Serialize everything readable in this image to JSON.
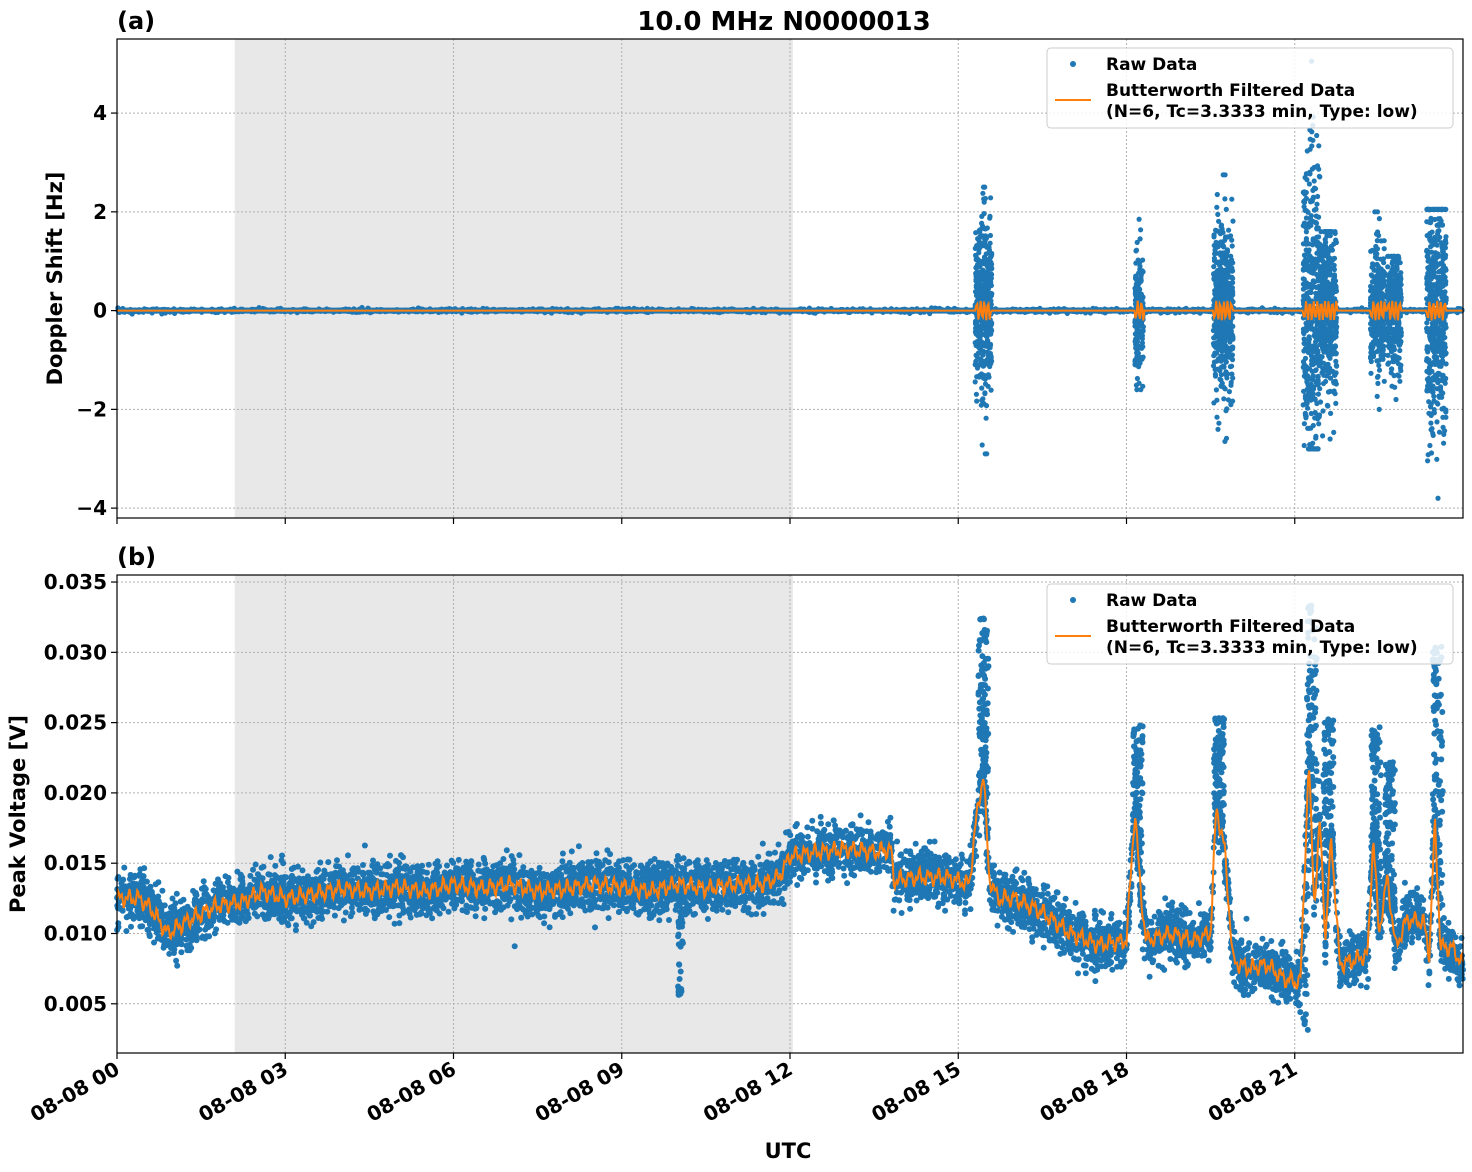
{
  "figure": {
    "title": "10.0 MHz N0000013",
    "xlabel": "UTC"
  },
  "colors": {
    "raw": "#1f77b4",
    "filtered": "#ff7f0e",
    "night_shade": "#e8e8e8"
  },
  "chart_data": [
    {
      "type": "scatter",
      "panel_label": "(a)",
      "ylabel": "Doppler Shift [Hz]",
      "xlim_hours": [
        0,
        24
      ],
      "ylim": [
        -4.2,
        5.5
      ],
      "yticks": [
        -4,
        -2,
        0,
        2,
        4
      ],
      "ytick_labels": [
        "−4",
        "−2",
        "0",
        "2",
        "4"
      ],
      "xticks_hours": [
        0,
        3,
        6,
        9,
        12,
        15,
        18,
        21
      ],
      "xtick_labels": [
        "08-08 00",
        "08-08 03",
        "08-08 06",
        "08-08 09",
        "08-08 12",
        "08-08 15",
        "08-08 18",
        "08-08 21"
      ],
      "grid": true,
      "night_shading_hours": [
        2.1,
        12.05
      ],
      "legend": {
        "placement": "top-right",
        "entries": [
          "Raw Data",
          "Butterworth Filtered Data\n(N=6, Tc=3.3333 min, Type: low)"
        ]
      },
      "series": [
        {
          "name": "Raw Data",
          "kind": "scatter",
          "baseline": 0.0,
          "bursts": [
            {
              "start": 15.3,
              "end": 15.6,
              "min": -2.9,
              "max": 2.5
            },
            {
              "start": 18.15,
              "end": 18.3,
              "min": -1.6,
              "max": 1.85
            },
            {
              "start": 19.55,
              "end": 19.9,
              "min": -2.65,
              "max": 2.75
            },
            {
              "start": 21.15,
              "end": 21.45,
              "min": -2.8,
              "max": 5.05
            },
            {
              "start": 21.45,
              "end": 21.75,
              "min": -2.6,
              "max": 1.6
            },
            {
              "start": 22.35,
              "end": 22.6,
              "min": -2.0,
              "max": 2.0
            },
            {
              "start": 22.65,
              "end": 22.9,
              "min": -1.8,
              "max": 1.1
            },
            {
              "start": 23.35,
              "end": 23.7,
              "min": -3.8,
              "max": 2.05
            }
          ]
        },
        {
          "name": "Butterworth Filtered Data\n(N=6, Tc=3.3333 min, Type: low)",
          "kind": "line",
          "baseline": 0.0,
          "wiggle_amplitude": 0.2
        }
      ]
    },
    {
      "type": "scatter",
      "panel_label": "(b)",
      "ylabel": "Peak Voltage [V]",
      "xlim_hours": [
        0,
        24
      ],
      "ylim": [
        0.0015,
        0.0355
      ],
      "yticks": [
        0.005,
        0.01,
        0.015,
        0.02,
        0.025,
        0.03,
        0.035
      ],
      "ytick_labels": [
        "0.005",
        "0.010",
        "0.015",
        "0.020",
        "0.025",
        "0.030",
        "0.035"
      ],
      "xticks_hours": [
        0,
        3,
        6,
        9,
        12,
        15,
        18,
        21
      ],
      "xtick_labels": [
        "08-08 00",
        "08-08 03",
        "08-08 06",
        "08-08 09",
        "08-08 12",
        "08-08 15",
        "08-08 18",
        "08-08 21"
      ],
      "grid": true,
      "night_shading_hours": [
        2.1,
        12.05
      ],
      "legend": {
        "placement": "top-right",
        "entries": [
          "Raw Data",
          "Butterworth Filtered Data\n(N=6, Tc=3.3333 min, Type: low)"
        ]
      },
      "series": [
        {
          "name": "Butterworth Filtered Data\n(N=6, Tc=3.3333 min, Type: low)",
          "kind": "line",
          "x": [
            0,
            0.4,
            0.6,
            0.9,
            1.3,
            1.8,
            2.2,
            2.6,
            3.0,
            3.5,
            4.0,
            4.5,
            5.0,
            5.5,
            6.0,
            6.5,
            7.0,
            7.5,
            8.0,
            8.5,
            9.0,
            9.5,
            10.0,
            10.5,
            11.0,
            11.5,
            11.8,
            12.0,
            12.5,
            13.0,
            13.5,
            13.8,
            13.85,
            14.3,
            14.8,
            15.2,
            15.3,
            15.45,
            15.55,
            15.7,
            16.0,
            16.5,
            17.0,
            17.5,
            18.0,
            18.15,
            18.25,
            18.35,
            18.8,
            19.2,
            19.5,
            19.6,
            19.75,
            19.9,
            20.2,
            20.5,
            20.8,
            21.1,
            21.25,
            21.35,
            21.45,
            21.55,
            21.65,
            21.8,
            22.0,
            22.3,
            22.4,
            22.5,
            22.65,
            22.8,
            23.0,
            23.3,
            23.4,
            23.5,
            23.6,
            23.8,
            24.0
          ],
          "y": [
            0.0125,
            0.0125,
            0.0118,
            0.01,
            0.011,
            0.012,
            0.0122,
            0.013,
            0.0125,
            0.0128,
            0.0132,
            0.013,
            0.0133,
            0.013,
            0.0135,
            0.0132,
            0.0135,
            0.013,
            0.0132,
            0.0135,
            0.0133,
            0.013,
            0.0135,
            0.0132,
            0.0135,
            0.0135,
            0.014,
            0.0155,
            0.0158,
            0.016,
            0.0158,
            0.016,
            0.0138,
            0.014,
            0.014,
            0.0135,
            0.0175,
            0.0215,
            0.014,
            0.0125,
            0.0125,
            0.0115,
            0.01,
            0.0092,
            0.0095,
            0.0188,
            0.013,
            0.0095,
            0.01,
            0.0095,
            0.01,
            0.019,
            0.016,
            0.008,
            0.0075,
            0.0078,
            0.0068,
            0.0065,
            0.0222,
            0.012,
            0.018,
            0.0095,
            0.017,
            0.0078,
            0.008,
            0.0085,
            0.017,
            0.01,
            0.014,
            0.009,
            0.011,
            0.0108,
            0.0085,
            0.018,
            0.009,
            0.009,
            0.0078
          ]
        },
        {
          "name": "Raw Data",
          "kind": "scatter",
          "spread": 0.0012,
          "spikes": [
            {
              "at": 15.45,
              "max": 0.0325
            },
            {
              "at": 18.2,
              "max": 0.0248
            },
            {
              "at": 19.65,
              "max": 0.0255
            },
            {
              "at": 21.3,
              "max": 0.0335
            },
            {
              "at": 21.6,
              "max": 0.0255
            },
            {
              "at": 22.45,
              "max": 0.0248
            },
            {
              "at": 22.7,
              "max": 0.0225
            },
            {
              "at": 23.55,
              "max": 0.0305
            }
          ],
          "dips": [
            {
              "at": 10.05,
              "min": 0.0055
            },
            {
              "at": 21.2,
              "min": 0.003
            }
          ]
        }
      ]
    }
  ]
}
